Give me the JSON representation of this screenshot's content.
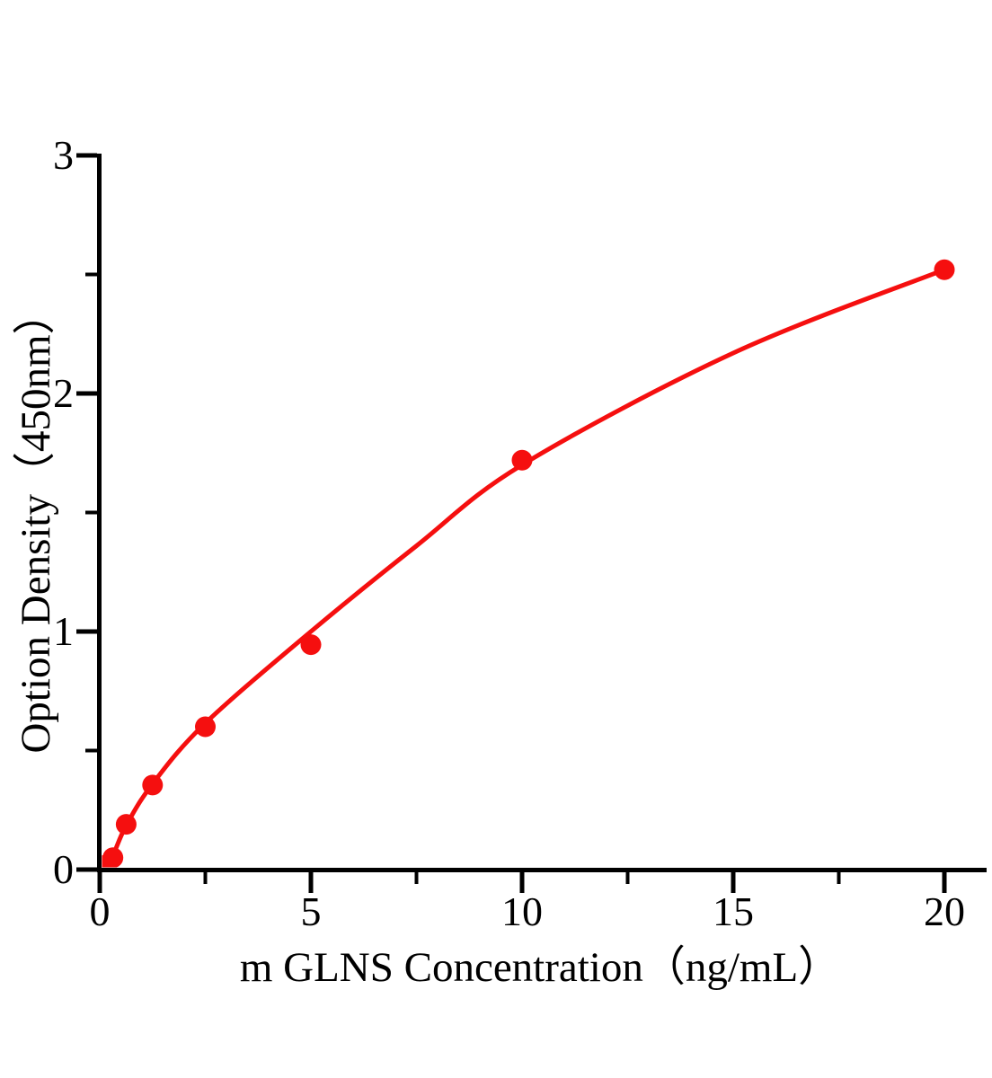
{
  "chart_data": {
    "type": "scatter",
    "title": "",
    "xlabel": "m GLNS Concentration（ng/mL）",
    "ylabel": "Option Density（450nm）",
    "xlim": [
      0,
      21
    ],
    "ylim": [
      0,
      3
    ],
    "grid": false,
    "legend": "none",
    "x_major_ticks": [
      0,
      5,
      10,
      15,
      20
    ],
    "x_minor_ticks": [
      2.5,
      7.5,
      12.5,
      17.5
    ],
    "y_major_ticks": [
      0,
      1,
      2,
      3
    ],
    "y_minor_ticks": [
      0.5,
      1.5,
      2.5
    ],
    "series": [
      {
        "name": "standard-points",
        "type": "scatter",
        "color": "#f50f0f",
        "x": [
          0.156,
          0.312,
          0.625,
          1.25,
          2.5,
          5,
          10,
          20
        ],
        "y": [
          0.02,
          0.05,
          0.19,
          0.355,
          0.6,
          0.945,
          1.72,
          2.52
        ]
      },
      {
        "name": "fit-curve",
        "type": "line",
        "color": "#f50f0f",
        "x": [
          0.12,
          0.312,
          0.625,
          1.25,
          2.5,
          5,
          7.5,
          10,
          15,
          20
        ],
        "y": [
          0.01,
          0.06,
          0.185,
          0.36,
          0.615,
          1.0,
          1.36,
          1.7,
          2.17,
          2.52
        ]
      }
    ]
  },
  "colors": {
    "accent_red": "#f50f0f",
    "axis": "#000000",
    "background": "#ffffff"
  }
}
